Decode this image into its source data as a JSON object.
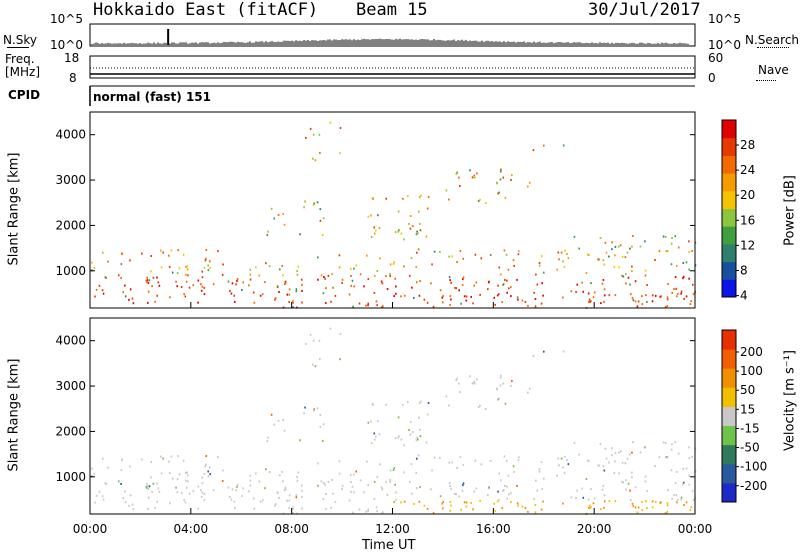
{
  "header": {
    "station": "Hokkaido East (fitACF)",
    "beam": "Beam 15",
    "date": "30/Jul/2017"
  },
  "top_panels": {
    "nsky_label": "N.Sky",
    "nsky_ticks": [
      "10^5",
      "10^0"
    ],
    "nsearch_label": "N.Search",
    "nsearch_ticks": [
      "10^5",
      "10^0"
    ],
    "freq_label_1": "Freq.",
    "freq_label_2": "[MHz]",
    "freq_ticks": [
      "18",
      "8"
    ],
    "nave_label": "Nave",
    "nave_ticks": [
      "60",
      "0"
    ],
    "cpid_label": "CPID",
    "cpid_value": "normal (fast) 151"
  },
  "chart_data": [
    {
      "type": "heatmap",
      "name": "power-panel",
      "ylabel": "Slant Range [km]",
      "y_ticks": [
        "4000",
        "3000",
        "2000",
        "1000"
      ],
      "y_values": [
        4000,
        3000,
        2000,
        1000
      ],
      "ylim": [
        180,
        4500
      ],
      "xlim": [
        0,
        24
      ],
      "colorbar_label": "Power [dB]",
      "colorbar_ticks": [
        "28",
        "24",
        "20",
        "16",
        "12",
        "8",
        "4"
      ],
      "colorbar_colors": [
        "#0a14e6",
        "#1a4fa0",
        "#2e7f6e",
        "#3f9f3f",
        "#8cc63f",
        "#f5c400",
        "#f59a00",
        "#f06a00",
        "#e63a00",
        "#e10000"
      ]
    },
    {
      "type": "heatmap",
      "name": "velocity-panel",
      "ylabel": "Slant Range [km]",
      "y_ticks": [
        "4000",
        "3000",
        "2000",
        "1000"
      ],
      "y_values": [
        4000,
        3000,
        2000,
        1000
      ],
      "ylim": [
        180,
        4500
      ],
      "xlim": [
        0,
        24
      ],
      "colorbar_label": "Velocity [m s⁻¹]",
      "colorbar_ticks": [
        "200",
        "100",
        "50",
        "15",
        "-15",
        "-50",
        "-100",
        "-200"
      ],
      "colorbar_colors": [
        "#1e28c8",
        "#2a5a9e",
        "#2f7a5a",
        "#6fc24a",
        "#c8c8c8",
        "#f0c000",
        "#f09000",
        "#f06000",
        "#e63000"
      ],
      "xlabel": "Time UT",
      "x_ticks": [
        "00:00",
        "04:00",
        "08:00",
        "12:00",
        "16:00",
        "20:00",
        "00:00"
      ],
      "x_values": [
        0,
        4,
        8,
        12,
        16,
        20,
        24
      ]
    }
  ]
}
